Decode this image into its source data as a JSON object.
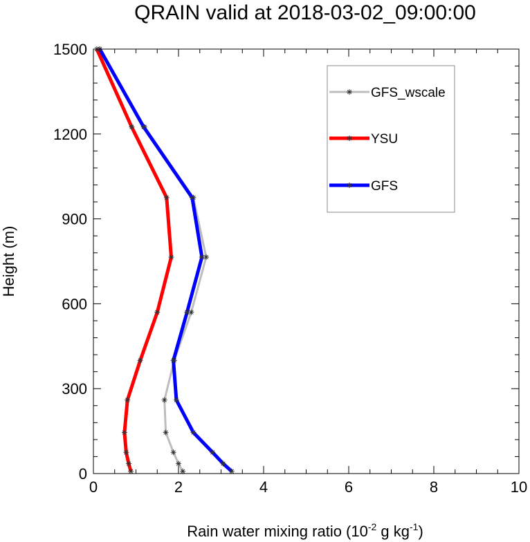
{
  "chart_data": {
    "type": "line",
    "title": "QRAIN valid at 2018-03-02_09:00:00",
    "xlabel_main": "Rain water mixing ratio (10",
    "xlabel_exp1": "-2",
    "xlabel_mid": " g kg",
    "xlabel_exp2": "-1",
    "xlabel_end": ")",
    "ylabel": "Height (m)",
    "xlim": [
      0,
      10
    ],
    "ylim": [
      0,
      1500
    ],
    "xticks": [
      0,
      2,
      4,
      6,
      8,
      10
    ],
    "xtick_labels": [
      "0",
      "2",
      "4",
      "6",
      "8",
      "10"
    ],
    "yticks": [
      0,
      300,
      600,
      900,
      1200,
      1500
    ],
    "ytick_labels": [
      "0",
      "300",
      "600",
      "900",
      "1200",
      "1500"
    ],
    "grid": false,
    "legend_position": "top-right",
    "series": [
      {
        "name": "GFS_wscale",
        "color": "#bdbdbd",
        "width": 3,
        "x": [
          2.1,
          2.0,
          1.88,
          1.7,
          1.67,
          1.9,
          2.3,
          2.65,
          2.35,
          1.2,
          0.15
        ],
        "y": [
          8,
          35,
          75,
          145,
          260,
          400,
          570,
          765,
          975,
          1225,
          1500
        ]
      },
      {
        "name": "YSU",
        "color": "#ff0000",
        "width": 5,
        "x": [
          0.88,
          0.83,
          0.77,
          0.73,
          0.8,
          1.1,
          1.5,
          1.83,
          1.72,
          0.9,
          0.08
        ],
        "y": [
          8,
          35,
          75,
          145,
          260,
          400,
          570,
          765,
          975,
          1225,
          1500
        ]
      },
      {
        "name": "GFS",
        "color": "#0000ff",
        "width": 5,
        "x": [
          3.25,
          3.05,
          2.8,
          2.35,
          1.95,
          1.88,
          2.2,
          2.55,
          2.32,
          1.18,
          0.15
        ],
        "y": [
          8,
          35,
          75,
          145,
          260,
          400,
          570,
          765,
          975,
          1225,
          1500
        ]
      }
    ]
  }
}
